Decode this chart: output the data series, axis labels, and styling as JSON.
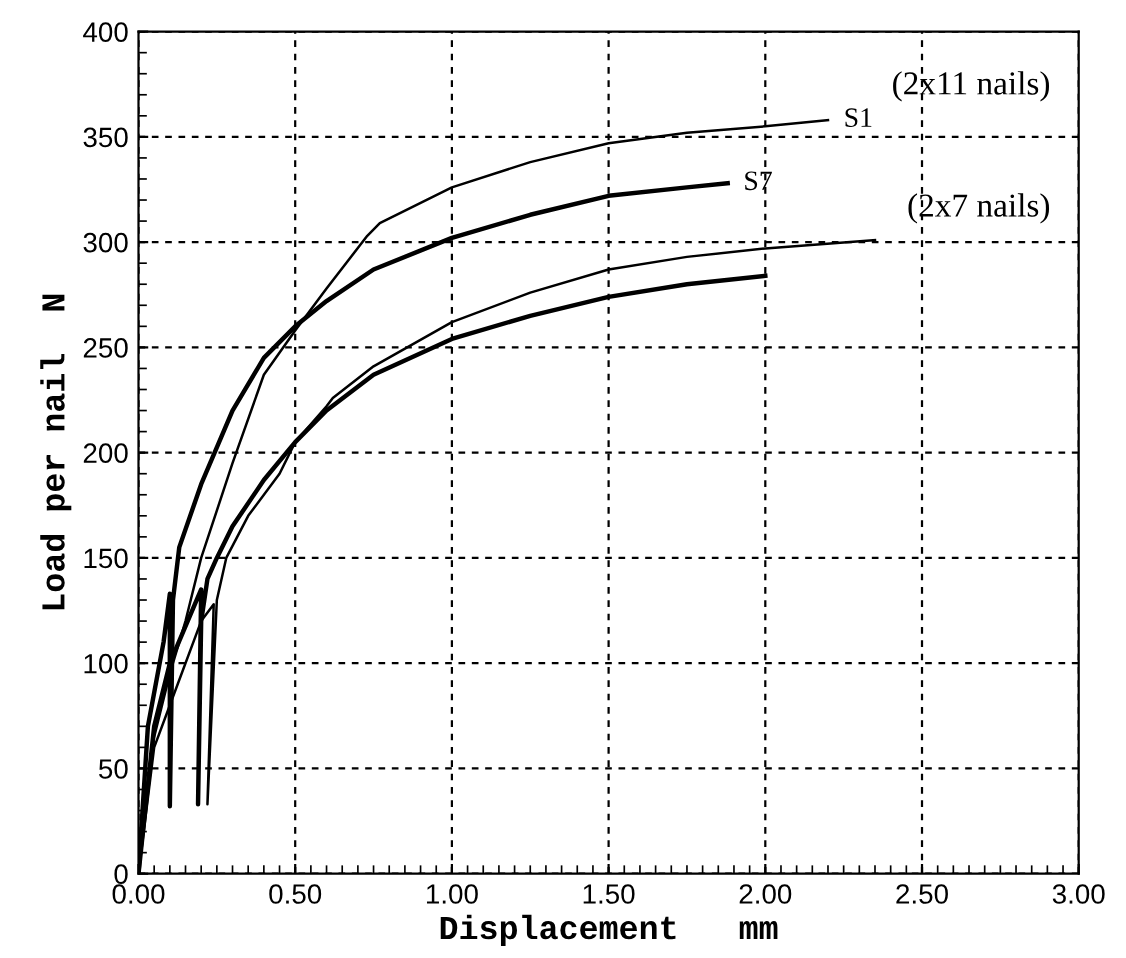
{
  "chart_data": {
    "type": "line",
    "xlabel": "Displacement   mm",
    "ylabel": "Load per nail  N",
    "xlim": [
      0,
      3
    ],
    "ylim": [
      0,
      400
    ],
    "xticks": [
      {
        "value": 0,
        "label": "0.00"
      },
      {
        "value": 0.5,
        "label": "0.50"
      },
      {
        "value": 1,
        "label": "1.00"
      },
      {
        "value": 1.5,
        "label": "1.50"
      },
      {
        "value": 2,
        "label": "2.00"
      },
      {
        "value": 2.5,
        "label": "2.50"
      },
      {
        "value": 3,
        "label": "3.00"
      }
    ],
    "yticks": [
      0,
      50,
      100,
      150,
      200,
      250,
      300,
      350,
      400
    ],
    "grid": true,
    "line_style": "solid",
    "marker": "none",
    "annotations": [
      "(2x11 nails)",
      "(2x7 nails)"
    ],
    "series": [
      {
        "name": "S1",
        "color": "#000000",
        "x": [
          0,
          0.05,
          0.1,
          0.15,
          0.2,
          0.3,
          0.4,
          0.5,
          0.6,
          0.73,
          0.77,
          1.0,
          1.25,
          1.5,
          1.75,
          2.0,
          2.2
        ],
        "values": [
          0,
          65,
          95,
          120,
          150,
          195,
          237,
          258,
          278,
          303,
          309,
          326,
          338,
          347,
          352,
          355,
          358
        ]
      },
      {
        "name": "S7",
        "color": "#000000",
        "x": [
          0,
          0.03,
          0.08,
          0.1,
          0.1,
          0.11,
          0.13,
          0.2,
          0.3,
          0.4,
          0.5,
          0.6,
          0.75,
          1.0,
          1.25,
          1.5,
          1.75,
          1.88
        ],
        "values": [
          0,
          70,
          110,
          133,
          32,
          130,
          155,
          185,
          220,
          245,
          260,
          272,
          287,
          302,
          313,
          322,
          326,
          328
        ]
      },
      {
        "color": "#000000",
        "x": [
          0,
          0.05,
          0.1,
          0.2,
          0.19,
          0.2,
          0.22,
          0.25,
          0.3,
          0.4,
          0.5,
          0.6,
          0.75,
          1.0,
          1.25,
          1.5,
          1.75,
          2.0
        ],
        "values": [
          0,
          70,
          100,
          135,
          33,
          120,
          140,
          150,
          165,
          187,
          205,
          220,
          237,
          254,
          265,
          274,
          280,
          284
        ]
      },
      {
        "color": "#000000",
        "x": [
          0,
          0.05,
          0.1,
          0.2,
          0.24,
          0.22,
          0.25,
          0.28,
          0.35,
          0.45,
          0.5,
          0.6,
          0.62,
          0.75,
          1.0,
          1.25,
          1.5,
          1.75,
          2.0,
          2.35
        ],
        "values": [
          0,
          60,
          80,
          120,
          128,
          33,
          130,
          150,
          170,
          190,
          205,
          222,
          226,
          241,
          262,
          276,
          287,
          293,
          297,
          301
        ]
      }
    ]
  }
}
